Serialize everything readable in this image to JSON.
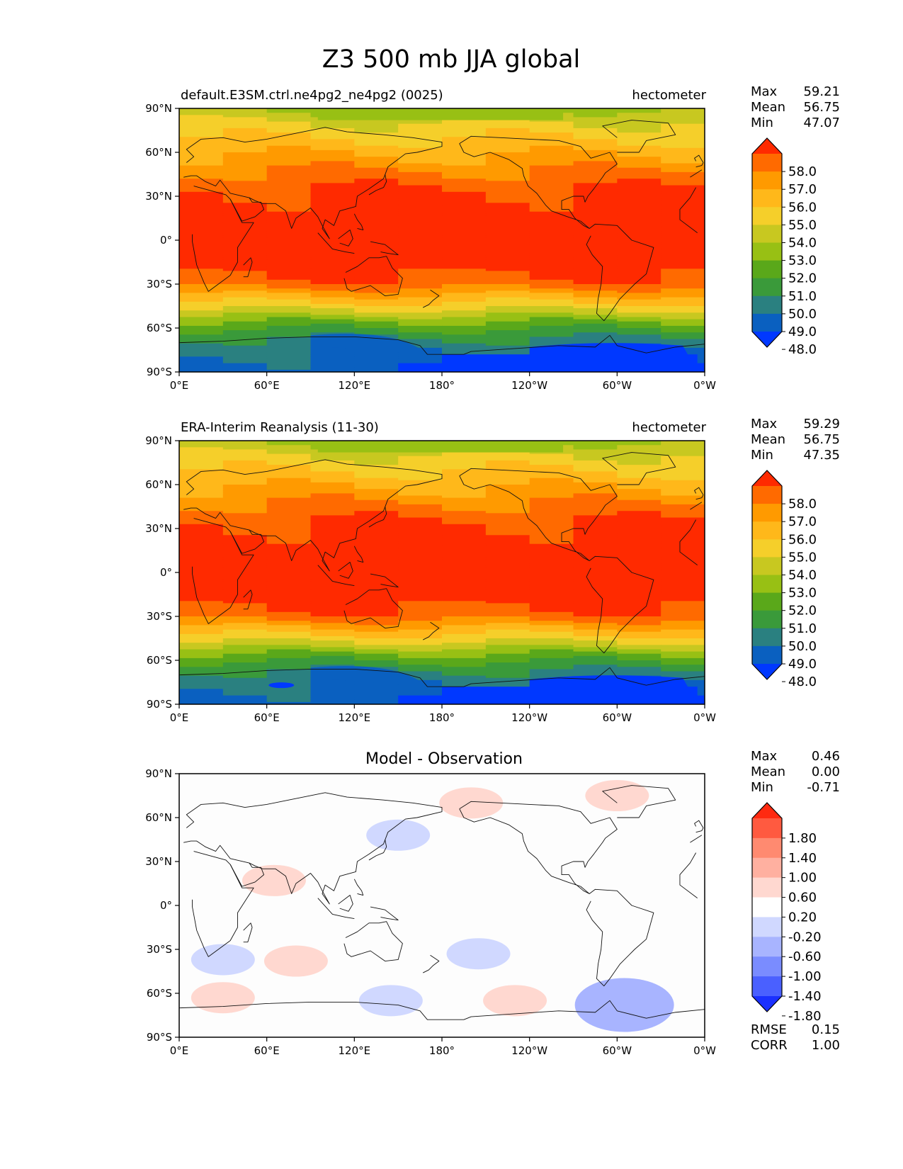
{
  "title": "Z3 500 mb JJA global",
  "axes": {
    "lon_ticks": [
      "0°E",
      "60°E",
      "120°E",
      "180°",
      "120°W",
      "60°W",
      "0°W"
    ],
    "lat_ticks": [
      "90°N",
      "60°N",
      "30°N",
      "0°",
      "30°S",
      "60°S",
      "90°S"
    ]
  },
  "stats_labels": {
    "max": "Max",
    "mean": "Mean",
    "min": "Min",
    "rmse": "RMSE",
    "corr": "CORR"
  },
  "panels": [
    {
      "id": "test",
      "title_left": "default.E3SM.ctrl.ne4pg2_ne4pg2 (0025)",
      "title_center": "",
      "units": "hectometer",
      "stats": {
        "max": "59.21",
        "mean": "56.75",
        "min": "47.07"
      },
      "colorbar": {
        "labels": [
          "58.0",
          "57.0",
          "56.0",
          "55.0",
          "54.0",
          "53.0",
          "52.0",
          "51.0",
          "50.0",
          "49.0",
          "48.0"
        ],
        "colors": [
          "#ff2a00",
          "#ff6a00",
          "#ff9a00",
          "#ffb81a",
          "#f5cf2a",
          "#c8c820",
          "#98c014",
          "#5aa81a",
          "#3a9a3a",
          "#2a8080",
          "#0a60c0",
          "#0038ff"
        ]
      }
    },
    {
      "id": "reference",
      "title_left": "ERA-Interim Reanalysis (11-30)",
      "title_center": "",
      "units": "hectometer",
      "stats": {
        "max": "59.29",
        "mean": "56.75",
        "min": "47.35"
      },
      "colorbar": {
        "labels": [
          "58.0",
          "57.0",
          "56.0",
          "55.0",
          "54.0",
          "53.0",
          "52.0",
          "51.0",
          "50.0",
          "49.0",
          "48.0"
        ],
        "colors": [
          "#ff2a00",
          "#ff6a00",
          "#ff9a00",
          "#ffb81a",
          "#f5cf2a",
          "#c8c820",
          "#98c014",
          "#5aa81a",
          "#3a9a3a",
          "#2a8080",
          "#0a60c0",
          "#0038ff"
        ]
      }
    },
    {
      "id": "difference",
      "title_left": "",
      "title_center": "Model - Observation",
      "units": "",
      "stats": {
        "max": "0.46",
        "mean": "0.00",
        "min": "-0.71",
        "rmse": "0.15",
        "corr": "1.00"
      },
      "colorbar": {
        "labels": [
          "1.80",
          "1.40",
          "1.00",
          "0.60",
          "0.20",
          "-0.20",
          "-0.60",
          "-1.00",
          "-1.40",
          "-1.80"
        ],
        "colors": [
          "#ff2a10",
          "#ff5a40",
          "#ff8a70",
          "#ffb0a0",
          "#ffd8d0",
          "#ffffff",
          "#d0d8ff",
          "#a8b4ff",
          "#7a8cff",
          "#4a60ff",
          "#1a30ff"
        ]
      }
    }
  ],
  "chart_data": [
    {
      "type": "heatmap",
      "title": "default.E3SM.ctrl.ne4pg2_ne4pg2 (0025)",
      "units": "hectometer",
      "x": [
        "0°E",
        "60°E",
        "120°E",
        "180°",
        "120°W",
        "60°W",
        "0°W"
      ],
      "lat": [
        90,
        75,
        60,
        45,
        30,
        15,
        0,
        -15,
        -30,
        -45,
        -60,
        -75,
        -90
      ],
      "zonal_mean_values": [
        53.0,
        54.5,
        55.8,
        57.2,
        58.3,
        58.6,
        58.5,
        58.4,
        57.6,
        54.5,
        51.0,
        49.0,
        48.3
      ],
      "levels": [
        48.0,
        49.0,
        50.0,
        51.0,
        52.0,
        53.0,
        54.0,
        55.0,
        56.0,
        57.0,
        58.0
      ],
      "max": 59.21,
      "mean": 56.75,
      "min": 47.07
    },
    {
      "type": "heatmap",
      "title": "ERA-Interim Reanalysis (11-30)",
      "units": "hectometer",
      "x": [
        "0°E",
        "60°E",
        "120°E",
        "180°",
        "120°W",
        "60°W",
        "0°W"
      ],
      "lat": [
        90,
        75,
        60,
        45,
        30,
        15,
        0,
        -15,
        -30,
        -45,
        -60,
        -75,
        -90
      ],
      "zonal_mean_values": [
        53.0,
        54.5,
        55.8,
        57.2,
        58.3,
        58.6,
        58.5,
        58.4,
        57.6,
        54.5,
        51.0,
        49.0,
        48.3
      ],
      "levels": [
        48.0,
        49.0,
        50.0,
        51.0,
        52.0,
        53.0,
        54.0,
        55.0,
        56.0,
        57.0,
        58.0
      ],
      "max": 59.29,
      "mean": 56.75,
      "min": 47.35
    },
    {
      "type": "heatmap",
      "title": "Model - Observation",
      "x": [
        "0°E",
        "60°E",
        "120°E",
        "180°",
        "120°W",
        "60°W",
        "0°W"
      ],
      "levels": [
        -1.8,
        -1.4,
        -1.0,
        -0.6,
        -0.2,
        0.2,
        0.6,
        1.0,
        1.4,
        1.8
      ],
      "max": 0.46,
      "mean": 0.0,
      "min": -0.71,
      "rmse": 0.15,
      "corr": 1.0,
      "anomalies": [
        {
          "lon": 200,
          "lat": 70,
          "value": 0.3
        },
        {
          "lon": 300,
          "lat": 75,
          "value": 0.4
        },
        {
          "lon": 150,
          "lat": 48,
          "value": -0.3
        },
        {
          "lon": 65,
          "lat": 17,
          "value": 0.3
        },
        {
          "lon": 80,
          "lat": -38,
          "value": 0.3
        },
        {
          "lon": 145,
          "lat": -65,
          "value": -0.3
        },
        {
          "lon": 230,
          "lat": -65,
          "value": 0.3
        },
        {
          "lon": 205,
          "lat": -33,
          "value": -0.3
        },
        {
          "lon": 305,
          "lat": -68,
          "value": -0.5
        },
        {
          "lon": 30,
          "lat": -37,
          "value": -0.3
        },
        {
          "lon": 30,
          "lat": -63,
          "value": 0.3
        }
      ]
    }
  ]
}
